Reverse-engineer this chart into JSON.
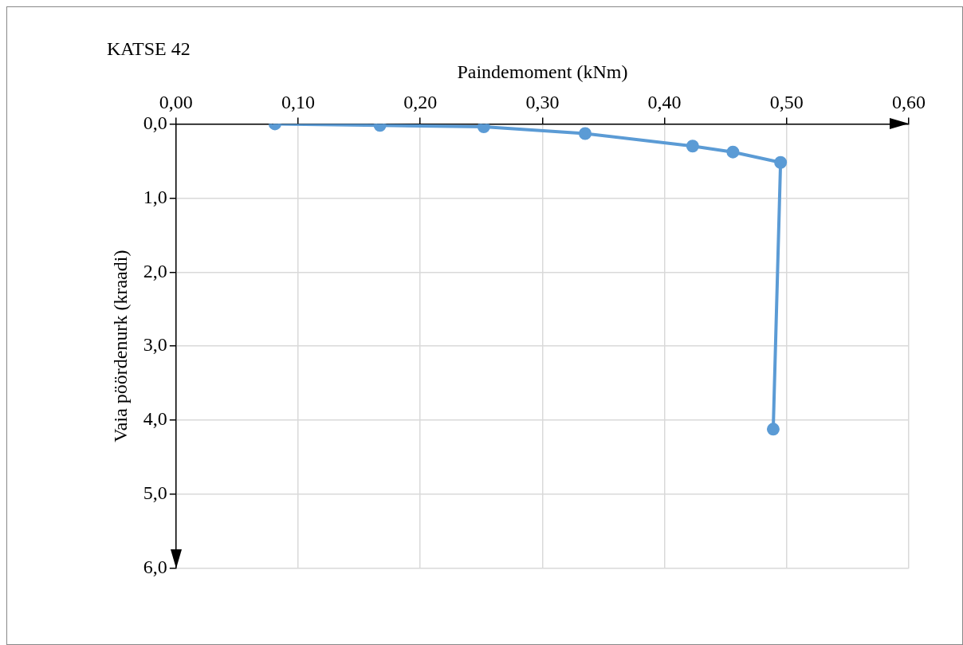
{
  "chart_data": {
    "type": "line",
    "title": "KATSE 42",
    "xlabel": "Paindemoment (kNm)",
    "ylabel": "Vaia pöördenurk (kraadi)",
    "x": [
      0.081,
      0.167,
      0.252,
      0.335,
      0.423,
      0.456,
      0.495,
      0.489
    ],
    "series": [
      {
        "color": "#5b9bd5",
        "values": [
          0.0,
          0.02,
          0.04,
          0.13,
          0.3,
          0.38,
          0.52,
          4.12
        ]
      }
    ],
    "xlim": [
      0,
      0.6
    ],
    "xticks": [
      {
        "value": 0,
        "label": "0,00"
      },
      {
        "value": 0.1,
        "label": "0,10"
      },
      {
        "value": 0.2,
        "label": "0,20"
      },
      {
        "value": 0.3,
        "label": "0,30"
      },
      {
        "value": 0.4,
        "label": "0,40"
      },
      {
        "value": 0.5,
        "label": "0,50"
      },
      {
        "value": 0.6,
        "label": "0,60"
      }
    ],
    "ylim": [
      6,
      0
    ],
    "yticks": [
      {
        "value": 0,
        "label": "0,0"
      },
      {
        "value": 1,
        "label": "1,0"
      },
      {
        "value": 2,
        "label": "2,0"
      },
      {
        "value": 3,
        "label": "3,0"
      },
      {
        "value": 4,
        "label": "4,0"
      },
      {
        "value": 5,
        "label": "5,0"
      },
      {
        "value": 6,
        "label": "6,0"
      }
    ],
    "grid": true,
    "marker": "circle",
    "line_style": "solid"
  }
}
